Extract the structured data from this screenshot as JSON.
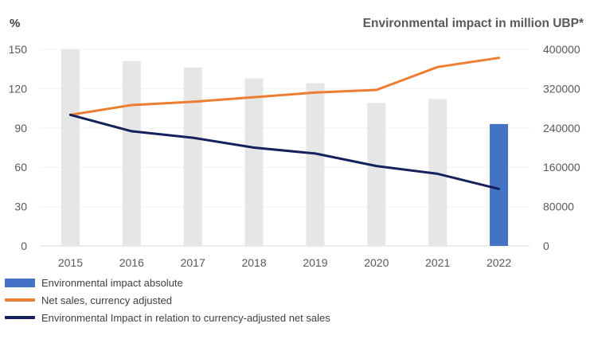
{
  "chart_data": {
    "type": "bar",
    "left_axis_title": "%",
    "right_axis_title": "Environmental impact in million UBP*",
    "categories": [
      "2015",
      "2016",
      "2017",
      "2018",
      "2019",
      "2020",
      "2021",
      "2022"
    ],
    "left_axis": {
      "ylim": [
        0,
        150
      ],
      "ticks": [
        "0",
        "30",
        "60",
        "90",
        "120",
        "150"
      ]
    },
    "right_axis": {
      "ylim": [
        0,
        400000
      ],
      "ticks": [
        "0",
        "80000",
        "160000",
        "240000",
        "320000",
        "400000"
      ]
    },
    "series": [
      {
        "name": "Environmental impact absolute",
        "type": "bar",
        "axis": "right",
        "color": "#4472C4",
        "values": [
          null,
          null,
          null,
          null,
          null,
          null,
          null,
          248000
        ]
      },
      {
        "type": "bar",
        "axis": "right",
        "color": "#E7E6E6",
        "values": [
          400000,
          376000,
          363000,
          341000,
          331000,
          291000,
          299000,
          null
        ]
      },
      {
        "name": "Net sales, currency adjusted",
        "type": "line",
        "axis": "left",
        "color": "#ED7D31",
        "values": [
          100,
          107.5,
          110,
          113.5,
          117,
          119,
          136.5,
          143.5
        ]
      },
      {
        "name": "Environmental Impact in relation to currency-adjusted net sales",
        "type": "line",
        "axis": "left",
        "color": "#14215C",
        "values": [
          100,
          87.5,
          82.5,
          75,
          70.5,
          61,
          55,
          43.5
        ]
      }
    ]
  }
}
